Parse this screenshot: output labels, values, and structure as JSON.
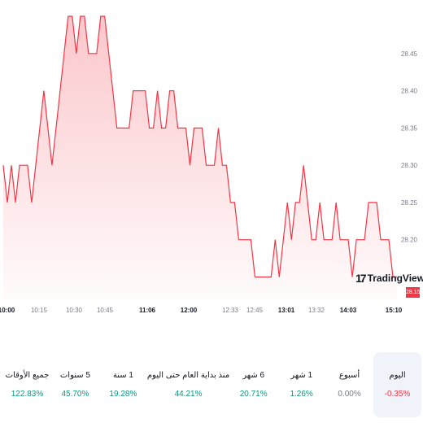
{
  "chart_data": {
    "type": "area",
    "y_ticks": [
      "28.45",
      "28.40",
      "28.35",
      "28.30",
      "28.25",
      "28.20"
    ],
    "y_tick_values": [
      28.45,
      28.4,
      28.35,
      28.3,
      28.25,
      28.2
    ],
    "ylim": [
      28.12,
      28.5
    ],
    "x_ticks": [
      {
        "label": "10:00",
        "bold": true
      },
      {
        "label": "10:15",
        "bold": false
      },
      {
        "label": "10:30",
        "bold": false
      },
      {
        "label": "10:45",
        "bold": false
      },
      {
        "label": "11:06",
        "bold": true
      },
      {
        "label": "12:00",
        "bold": true
      },
      {
        "label": "12:33",
        "bold": false
      },
      {
        "label": "12:45",
        "bold": false
      },
      {
        "label": "13:01",
        "bold": true
      },
      {
        "label": "13:32",
        "bold": false
      },
      {
        "label": "14:03",
        "bold": true
      },
      {
        "label": "15:10",
        "bold": true
      }
    ],
    "values": [
      28.3,
      28.25,
      28.3,
      28.25,
      28.3,
      28.3,
      28.3,
      28.25,
      28.3,
      28.35,
      28.4,
      28.35,
      28.3,
      28.35,
      28.4,
      28.45,
      28.5,
      28.5,
      28.45,
      28.5,
      28.5,
      28.45,
      28.45,
      28.45,
      28.5,
      28.5,
      28.45,
      28.4,
      28.35,
      28.35,
      28.35,
      28.35,
      28.4,
      28.4,
      28.4,
      28.4,
      28.35,
      28.35,
      28.4,
      28.35,
      28.35,
      28.4,
      28.4,
      28.35,
      28.35,
      28.35,
      28.3,
      28.35,
      28.35,
      28.35,
      28.3,
      28.3,
      28.3,
      28.35,
      28.3,
      28.3,
      28.25,
      28.25,
      28.2,
      28.2,
      28.2,
      28.2,
      28.15,
      28.15,
      28.15,
      28.15,
      28.15,
      28.2,
      28.15,
      28.2,
      28.25,
      28.2,
      28.25,
      28.25,
      28.3,
      28.25,
      28.2,
      28.2,
      28.25,
      28.2,
      28.2,
      28.2,
      28.25,
      28.2,
      28.2,
      28.2,
      28.15,
      28.2,
      28.2,
      28.2,
      28.25,
      28.25,
      28.25,
      28.2,
      28.2,
      28.2,
      28.15,
      28.15
    ],
    "last_price": "28.15",
    "line_color": "#f23645",
    "fill_color": "#f23645"
  },
  "branding": {
    "logo_mark": "17",
    "logo_text": "TradingView"
  },
  "periods": [
    {
      "label": "اليوم",
      "value": "0.35%-",
      "trend": "neg",
      "selected": true
    },
    {
      "label": "أسبوع",
      "value": "0.00%",
      "trend": "neu",
      "selected": false
    },
    {
      "label": "1 شهر",
      "value": "1.26%",
      "trend": "pos",
      "selected": false
    },
    {
      "label": "6 شهر",
      "value": "20.71%",
      "trend": "pos",
      "selected": false
    },
    {
      "label": "منذ بداية العام حتى اليوم",
      "value": "44.21%",
      "trend": "pos",
      "selected": false
    },
    {
      "label": "1 سنة",
      "value": "19.28%",
      "trend": "pos",
      "selected": false
    },
    {
      "label": "5 سنوات",
      "value": "45.70%",
      "trend": "pos",
      "selected": false
    },
    {
      "label": "جميع الأوقات",
      "value": "122.83%",
      "trend": "pos",
      "selected": false
    }
  ]
}
